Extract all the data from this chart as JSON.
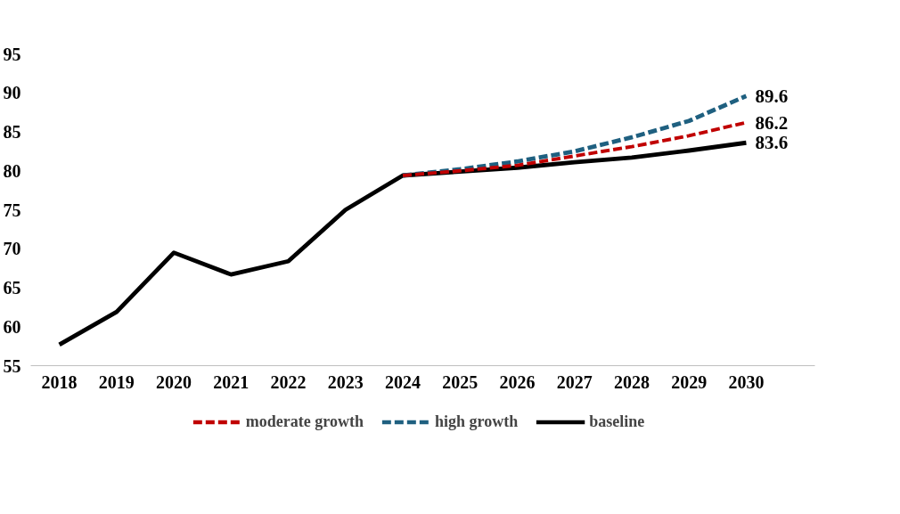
{
  "chart_data": {
    "type": "line",
    "categories": [
      "2018",
      "2019",
      "2020",
      "2021",
      "2022",
      "2023",
      "2024",
      "2025",
      "2026",
      "2027",
      "2028",
      "2029",
      "2030"
    ],
    "series": [
      {
        "name": "moderate growth",
        "color": "#c00000",
        "line_style": "dashed",
        "values": [
          null,
          null,
          null,
          null,
          null,
          null,
          79.4,
          80.0,
          80.7,
          81.9,
          83.1,
          84.5,
          86.2
        ],
        "value_labels": [
          null,
          null,
          null,
          null,
          null,
          null,
          null,
          null,
          null,
          null,
          null,
          null,
          "86.2"
        ]
      },
      {
        "name": "high growth",
        "color": "#1f6080",
        "line_style": "dashed",
        "values": [
          null,
          null,
          null,
          null,
          null,
          null,
          79.4,
          80.2,
          81.2,
          82.5,
          84.3,
          86.4,
          89.6
        ],
        "value_labels": [
          null,
          null,
          null,
          null,
          null,
          null,
          null,
          null,
          null,
          null,
          null,
          null,
          "89.6"
        ]
      },
      {
        "name": "baseline",
        "color": "#000000",
        "line_style": "solid",
        "values": [
          57.7,
          61.9,
          69.5,
          66.7,
          68.4,
          75.0,
          79.4,
          79.9,
          80.4,
          81.1,
          81.7,
          82.6,
          83.6
        ],
        "value_labels": [
          null,
          null,
          null,
          null,
          null,
          null,
          null,
          null,
          null,
          null,
          null,
          null,
          "83.6"
        ]
      }
    ],
    "ylim": [
      55,
      95
    ],
    "yticks": [
      55,
      60,
      65,
      70,
      75,
      80,
      85,
      90,
      95
    ],
    "grid": false,
    "legend": "bottom",
    "marker": "none"
  }
}
